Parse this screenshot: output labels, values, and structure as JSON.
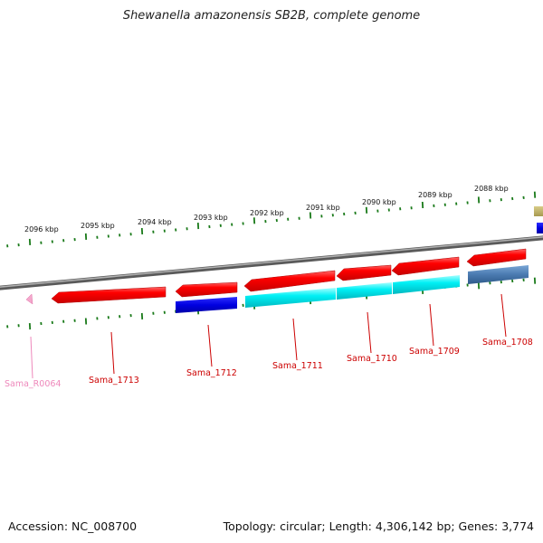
{
  "title": "Shewanella amazonensis SB2B, complete genome",
  "footer": {
    "accession": "Accession: NC_008700",
    "topology": "Topology: circular; Length: 4,306,142 bp; Genes: 3,774"
  },
  "ruler": {
    "unit": "kbp",
    "ticks": [
      {
        "label": "2096 kbp"
      },
      {
        "label": "2095 kbp"
      },
      {
        "label": "2094 kbp"
      },
      {
        "label": "2093 kbp"
      },
      {
        "label": "2092 kbp"
      },
      {
        "label": "2091 kbp"
      },
      {
        "label": "2090 kbp"
      },
      {
        "label": "2089 kbp"
      },
      {
        "label": "2088 kbp"
      }
    ]
  },
  "colors": {
    "gene": "#ee0000",
    "cds_cyan": "#00e5ee",
    "cds_blue": "#0000dd",
    "cds_steel": "#4a7ab0",
    "rna": "#ee88bb",
    "backbone": "#808080",
    "tick": "#1a7a1a",
    "label_gene": "#cc0000",
    "label_rna": "#ee88bb"
  },
  "genes": [
    {
      "label": "Sama_R0064",
      "type": "rna"
    },
    {
      "label": "Sama_1713",
      "type": "gene"
    },
    {
      "label": "Sama_1712",
      "type": "gene"
    },
    {
      "label": "Sama_1711",
      "type": "gene"
    },
    {
      "label": "Sama_1710",
      "type": "gene"
    },
    {
      "label": "Sama_1709",
      "type": "gene"
    },
    {
      "label": "Sama_1708",
      "type": "gene"
    }
  ]
}
